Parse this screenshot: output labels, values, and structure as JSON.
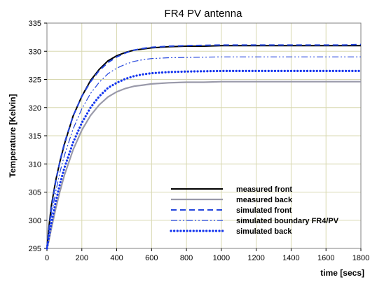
{
  "chart_data": {
    "type": "line",
    "title": "FR4 PV antenna",
    "xlabel": "time [secs]",
    "ylabel": "Temperature [Kelvin]",
    "xlim": [
      0,
      1800
    ],
    "ylim": [
      295,
      335
    ],
    "xticks": [
      0,
      200,
      400,
      600,
      800,
      1000,
      1200,
      1400,
      1600,
      1800
    ],
    "yticks": [
      295,
      300,
      305,
      310,
      315,
      320,
      325,
      330,
      335
    ],
    "grid": true,
    "legend_position": "bottom-right",
    "series": [
      {
        "name": "measured front",
        "color": "#000000",
        "style": "solid",
        "x": [
          0,
          10,
          25,
          50,
          75,
          100,
          150,
          200,
          250,
          300,
          350,
          400,
          450,
          500,
          550,
          600,
          700,
          800,
          900,
          1000,
          1100,
          1200,
          1300,
          1400,
          1500,
          1600,
          1700,
          1800
        ],
        "y": [
          295,
          298.5,
          302.5,
          307,
          310.5,
          313.5,
          318.5,
          322,
          324.8,
          326.8,
          328.3,
          329.2,
          329.8,
          330.2,
          330.4,
          330.6,
          330.8,
          330.9,
          330.9,
          331.0,
          331.0,
          331.0,
          331.0,
          331.0,
          331.0,
          331.0,
          331.0,
          331.0
        ]
      },
      {
        "name": "measured back",
        "color": "#9a9aaa",
        "style": "solid",
        "x": [
          0,
          10,
          25,
          50,
          75,
          100,
          150,
          200,
          250,
          300,
          350,
          400,
          450,
          500,
          550,
          600,
          700,
          800,
          900,
          1000,
          1100,
          1200,
          1300,
          1400,
          1500,
          1600,
          1700,
          1800
        ],
        "y": [
          295,
          296.2,
          298.5,
          302,
          305.2,
          308,
          312.5,
          316,
          318.6,
          320.5,
          321.9,
          322.8,
          323.4,
          323.8,
          324.0,
          324.2,
          324.4,
          324.5,
          324.5,
          324.6,
          324.6,
          324.6,
          324.6,
          324.6,
          324.6,
          324.6,
          324.6,
          324.6
        ]
      },
      {
        "name": "simulated front",
        "color": "#2244dd",
        "style": "dashed",
        "x": [
          0,
          10,
          25,
          50,
          75,
          100,
          150,
          200,
          250,
          300,
          350,
          400,
          450,
          500,
          550,
          600,
          700,
          800,
          900,
          1000,
          1100,
          1200,
          1300,
          1400,
          1500,
          1600,
          1700,
          1800
        ],
        "y": [
          295,
          298.0,
          302.0,
          306.8,
          310.6,
          313.7,
          318.5,
          322.0,
          324.6,
          326.6,
          328.0,
          329.0,
          329.7,
          330.2,
          330.5,
          330.7,
          330.9,
          331.0,
          331.05,
          331.1,
          331.1,
          331.1,
          331.1,
          331.1,
          331.1,
          331.1,
          331.1,
          331.2
        ]
      },
      {
        "name": "simulated boundary FR4/PV",
        "color": "#2244dd",
        "style": "dashdotdot",
        "x": [
          0,
          10,
          25,
          50,
          75,
          100,
          150,
          200,
          250,
          300,
          350,
          400,
          450,
          500,
          550,
          600,
          700,
          800,
          900,
          1000,
          1100,
          1200,
          1300,
          1400,
          1500,
          1600,
          1700,
          1800
        ],
        "y": [
          295,
          297.6,
          300.8,
          305.0,
          308.6,
          311.5,
          316.2,
          319.8,
          322.5,
          324.5,
          326.0,
          327.0,
          327.7,
          328.2,
          328.5,
          328.7,
          328.85,
          328.9,
          328.95,
          329.0,
          329.0,
          329.0,
          329.0,
          329.0,
          329.0,
          329.0,
          329.0,
          329.0
        ]
      },
      {
        "name": "simulated back",
        "color": "#1133ee",
        "style": "dotted",
        "x": [
          0,
          10,
          25,
          50,
          75,
          100,
          150,
          200,
          250,
          300,
          350,
          400,
          450,
          500,
          550,
          600,
          700,
          800,
          900,
          1000,
          1100,
          1200,
          1300,
          1400,
          1500,
          1600,
          1700,
          1800
        ],
        "y": [
          295,
          296.8,
          299.4,
          303.2,
          306.5,
          309.3,
          313.8,
          317.3,
          320.0,
          322.0,
          323.5,
          324.4,
          325.1,
          325.6,
          325.9,
          326.1,
          326.3,
          326.4,
          326.45,
          326.5,
          326.5,
          326.5,
          326.5,
          326.5,
          326.5,
          326.5,
          326.5,
          326.5
        ]
      }
    ]
  }
}
